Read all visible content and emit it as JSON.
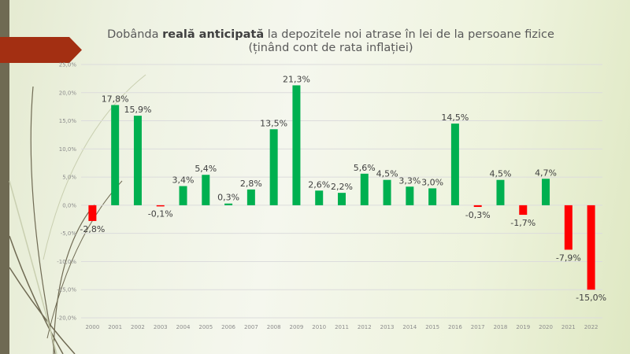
{
  "title": {
    "part1": "Dobânda ",
    "bold": "reală anticipată",
    "part2": " la depozitele noi atrase în lei de la persoane fizice",
    "line2": "(ținând cont de rata inflației)"
  },
  "colors": {
    "positive": "#00b050",
    "negative": "#ff0000",
    "banner": "#a32f12",
    "sidebar": "#6f6a53"
  },
  "chart_data": {
    "type": "bar",
    "title": "Dobânda reală anticipată la depozitele noi atrase în lei de la persoane fizice (ținând cont de rata inflației)",
    "xlabel": "",
    "ylabel": "",
    "ylim": [
      -20,
      25
    ],
    "grid": true,
    "legend": "none",
    "yticks": [
      "25,0%",
      "20,0%",
      "15,0%",
      "10,0%",
      "5,0%",
      "0,0%",
      "-5,0%",
      "-10,0%",
      "-15,0%",
      "-20,0%"
    ],
    "ytick_values": [
      25,
      20,
      15,
      10,
      5,
      0,
      -5,
      -10,
      -15,
      -20
    ],
    "categories": [
      "2000",
      "2001",
      "2002",
      "2003",
      "2004",
      "2005",
      "2006",
      "2007",
      "2008",
      "2009",
      "2010",
      "2011",
      "2012",
      "2013",
      "2014",
      "2015",
      "2016",
      "2017",
      "2018",
      "2019",
      "2020",
      "2021",
      "2022"
    ],
    "values": [
      -2.8,
      17.8,
      15.9,
      -0.1,
      3.4,
      5.4,
      0.3,
      2.8,
      13.5,
      21.3,
      2.6,
      2.2,
      5.6,
      4.5,
      3.3,
      3.0,
      14.5,
      -0.3,
      4.5,
      -1.7,
      4.7,
      -7.9,
      -15.0
    ],
    "labels": [
      "-2,8%",
      "17,8%",
      "15,9%",
      "-0,1%",
      "3,4%",
      "5,4%",
      "0,3%",
      "2,8%",
      "13,5%",
      "21,3%",
      "2,6%",
      "2,2%",
      "5,6%",
      "4,5%",
      "3,3%",
      "3,0%",
      "14,5%",
      "-0,3%",
      "4,5%",
      "-1,7%",
      "4,7%",
      "-7,9%",
      "-15,0%"
    ]
  }
}
